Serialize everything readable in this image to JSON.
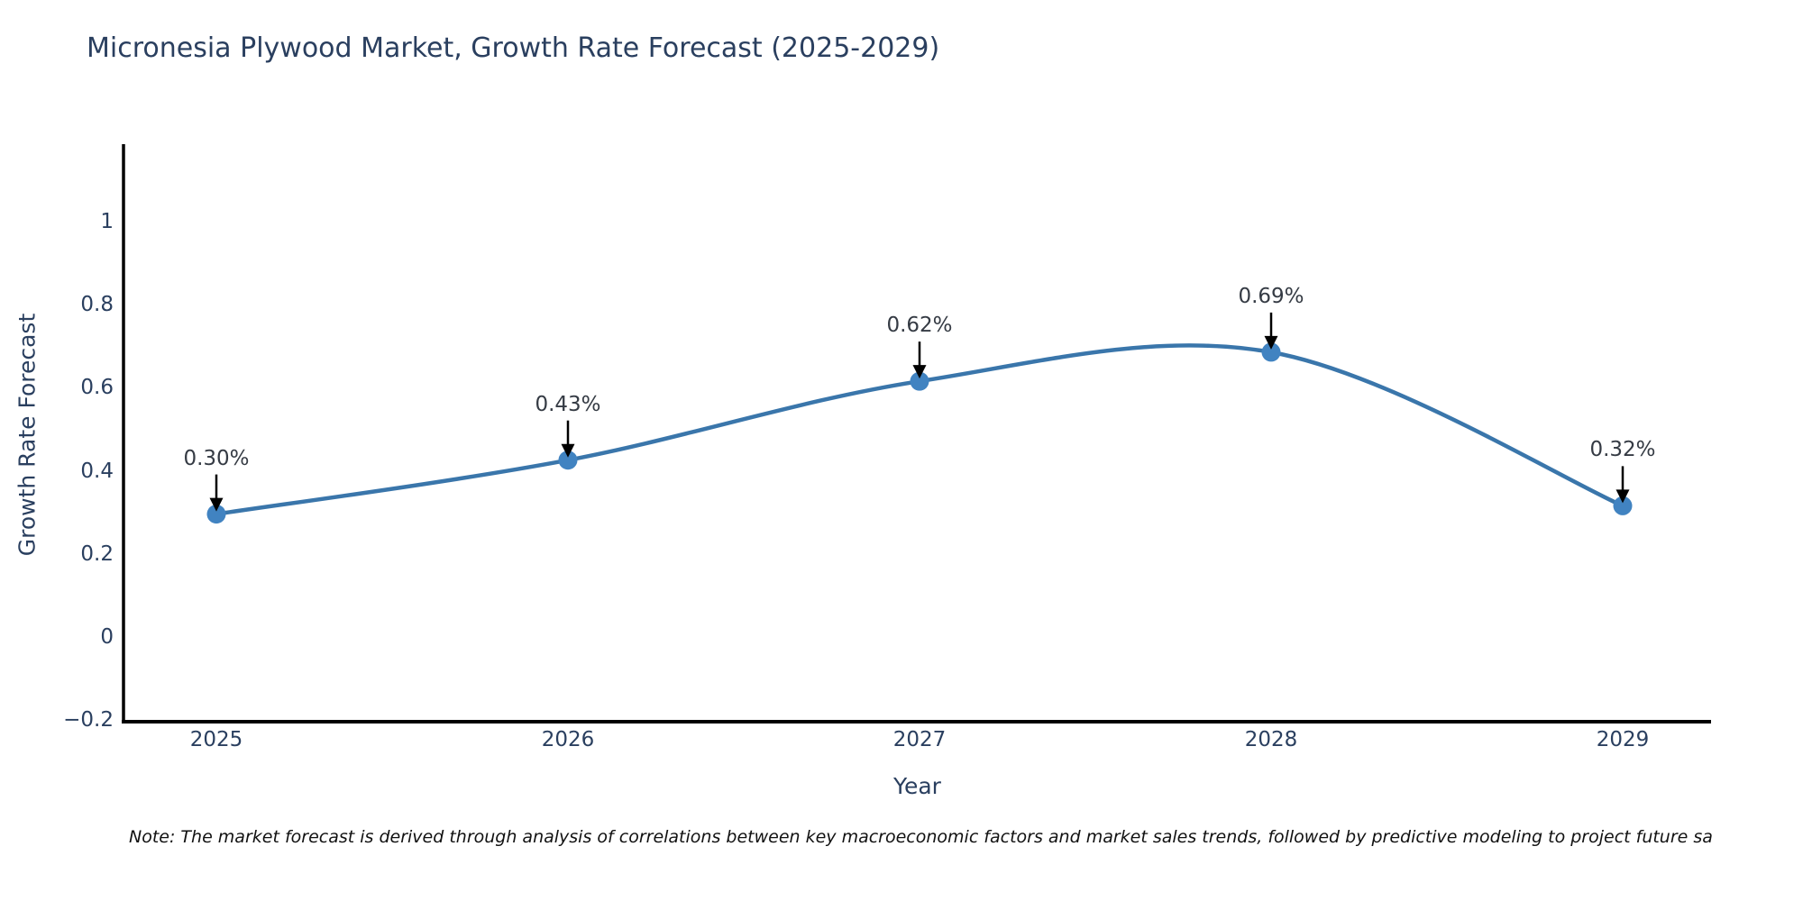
{
  "title": "Micronesia Plywood Market, Growth Rate Forecast (2025-2029)",
  "note": "Note: The market forecast is derived through analysis of correlations between key macroeconomic factors and market sales trends, followed by predictive modeling to project future sa",
  "chart_data": {
    "type": "line",
    "title": "Micronesia Plywood Market, Growth Rate Forecast (2025-2029)",
    "x": [
      "2025",
      "2026",
      "2027",
      "2028",
      "2029"
    ],
    "series": [
      {
        "name": "Growth Rate Forecast",
        "values": [
          0.3,
          0.43,
          0.62,
          0.69,
          0.32
        ]
      }
    ],
    "point_labels": [
      "0.30%",
      "0.43%",
      "0.62%",
      "0.69%",
      "0.32%"
    ],
    "xlabel": "Year",
    "ylabel": "Growth Rate Forecast",
    "ylim": [
      -0.2,
      1.19
    ],
    "yticks": [
      "1",
      "0.8",
      "0.6",
      "0.4",
      "0.2",
      "0",
      "−0.2"
    ],
    "ytick_values": [
      1,
      0.8,
      0.6,
      0.4,
      0.2,
      0,
      -0.2
    ],
    "line_shape": "spline",
    "grid": false,
    "legend_position": "none",
    "colors": {
      "line": "#3a76ab",
      "marker": "#4183c1",
      "tick_text": "#2a3f5f",
      "annotation_text": "#353b44",
      "axis": "#000000",
      "arrow": "#000000"
    }
  }
}
